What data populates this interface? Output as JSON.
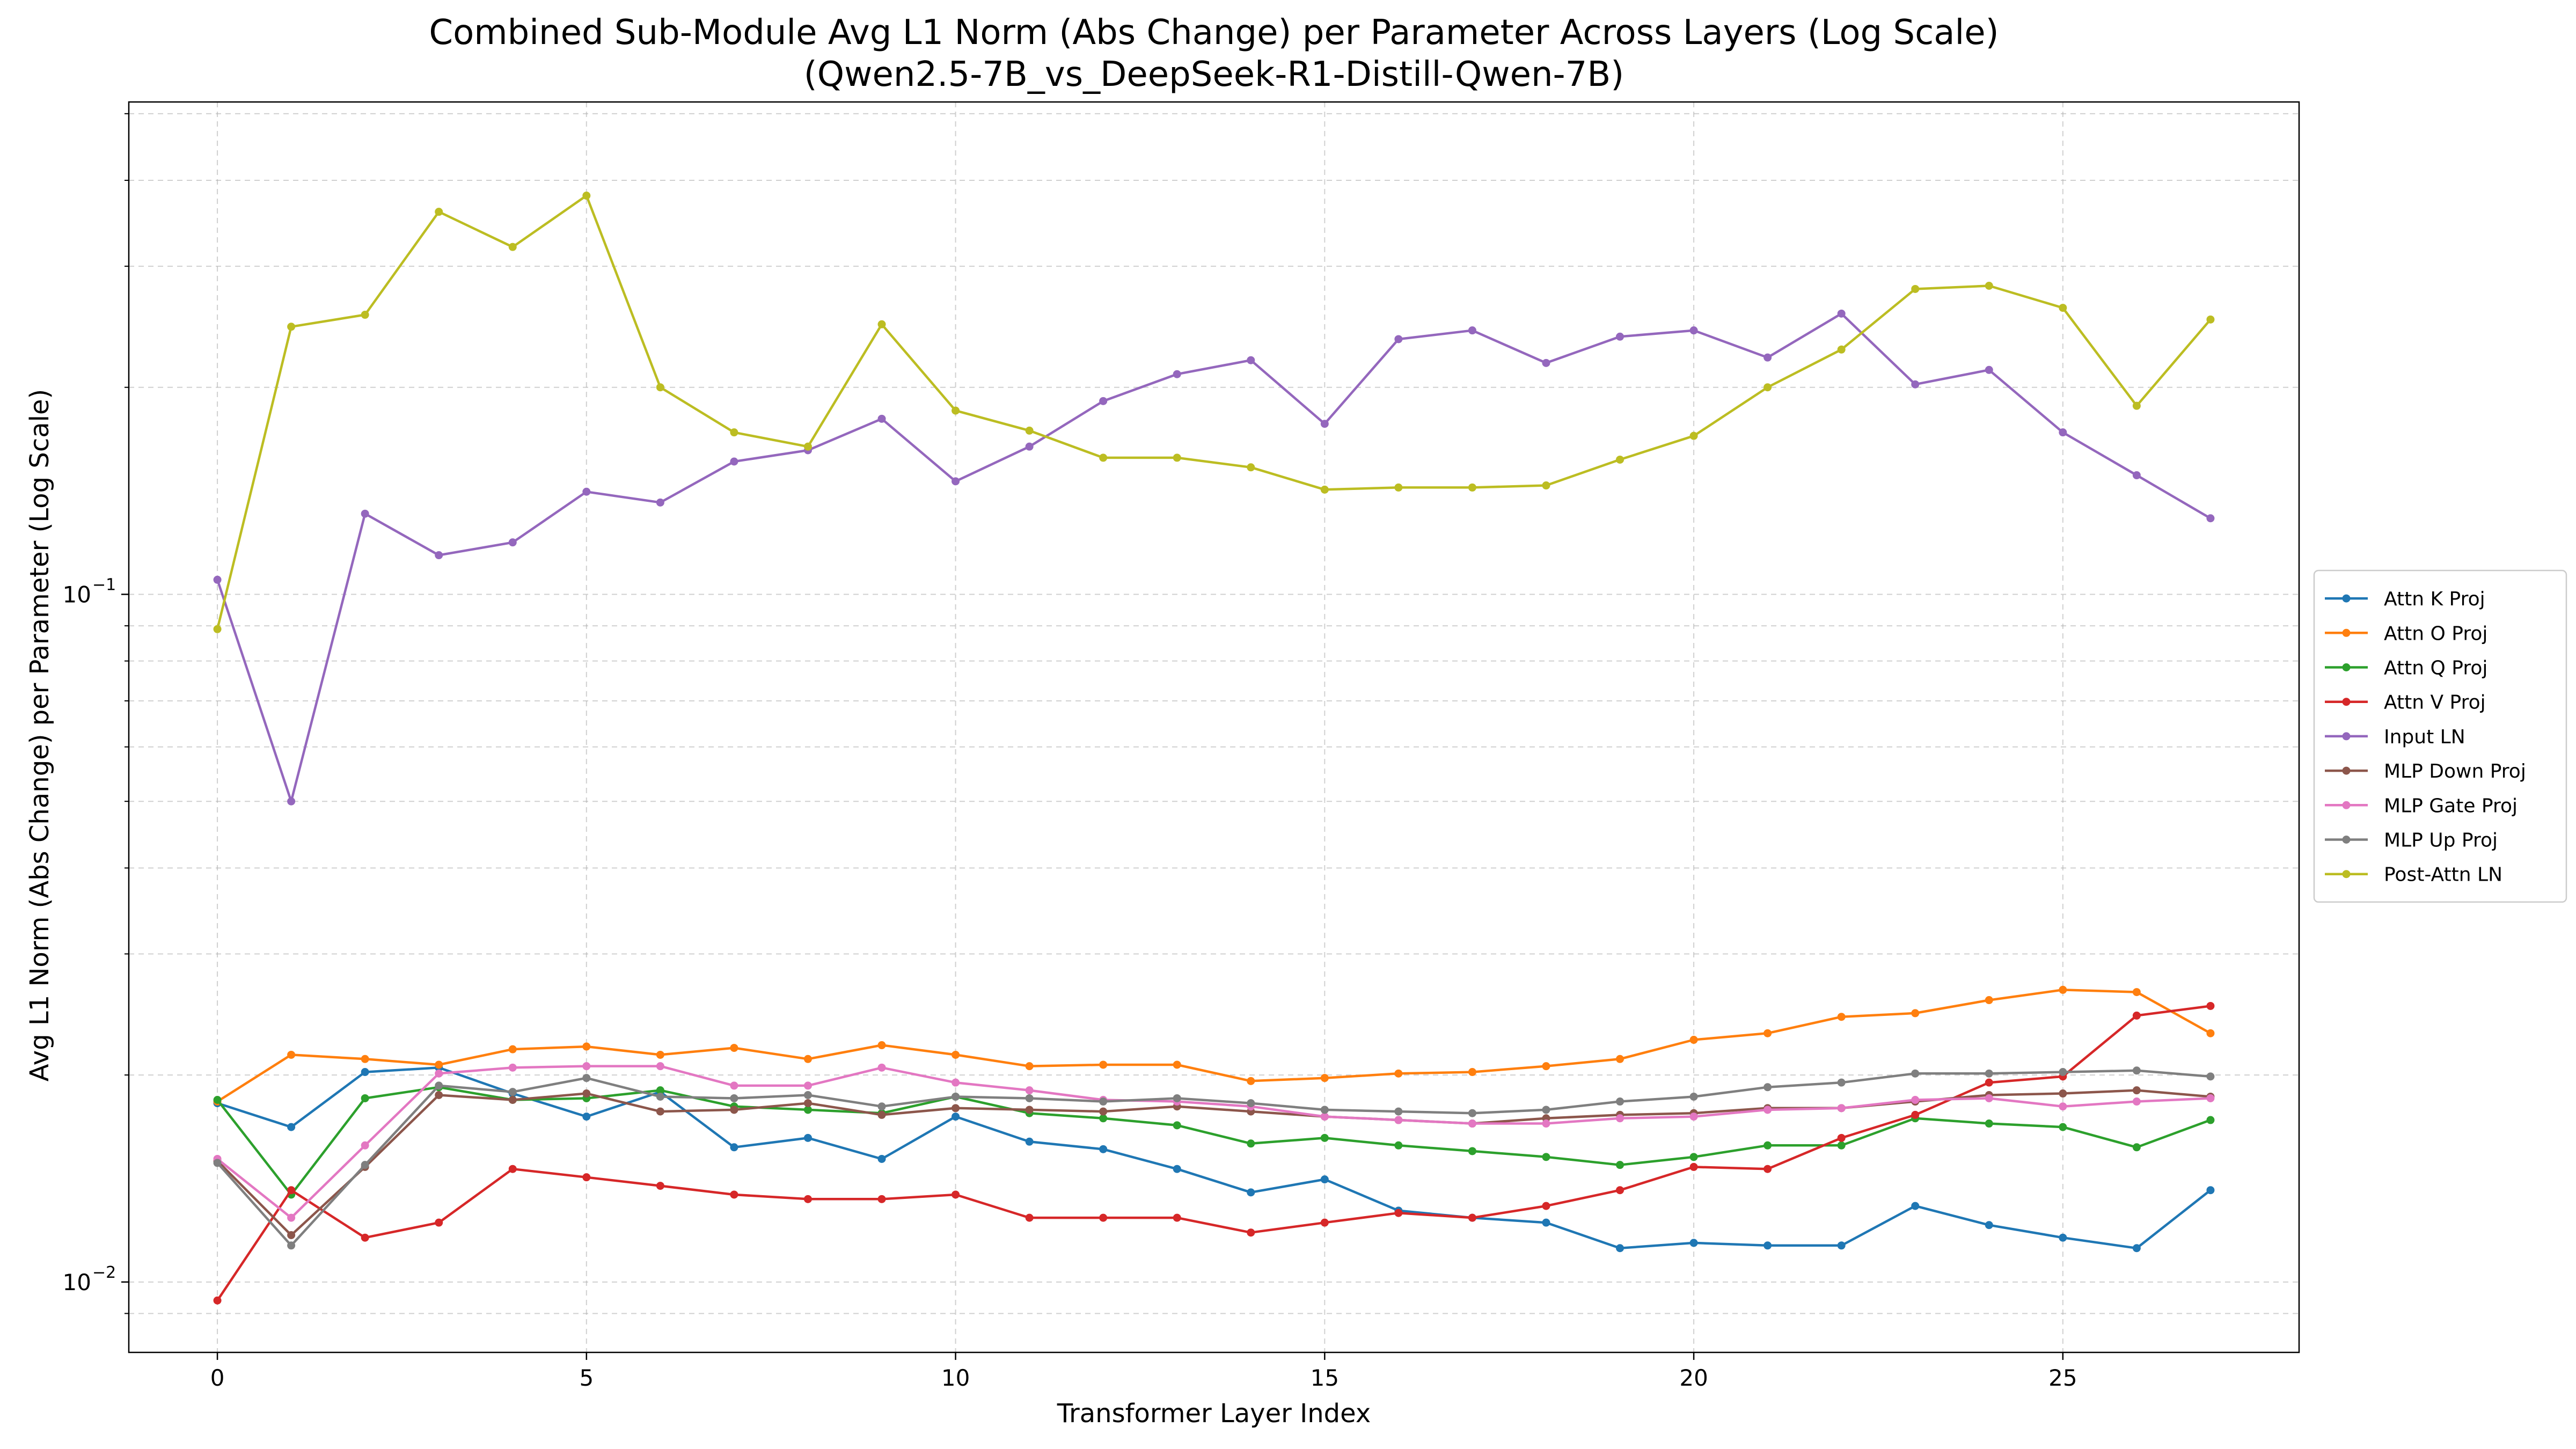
{
  "chart_data": {
    "type": "line",
    "title": "Combined Sub-Module Avg L1 Norm (Abs Change) per Parameter Across Layers (Log Scale)",
    "subtitle": "(Qwen2.5-7B_vs_DeepSeek-R1-Distill-Qwen-7B)",
    "xlabel": "Transformer Layer Index",
    "ylabel": "Avg L1 Norm (Abs Change) per Parameter (Log Scale)",
    "yscale": "log",
    "xlim": [
      -1.2,
      28.2
    ],
    "ylim": [
      0.0079,
      0.52
    ],
    "x_ticks": [
      0,
      5,
      10,
      15,
      20,
      25
    ],
    "x_tick_labels": [
      "0",
      "5",
      "10",
      "15",
      "20",
      "25"
    ],
    "y_major_ticks": [
      {
        "value": 0.01,
        "base": "10",
        "exp": "−2"
      },
      {
        "value": 0.1,
        "base": "10",
        "exp": "−1"
      }
    ],
    "y_minor_ticks": [
      0.009,
      0.02,
      0.03,
      0.04,
      0.05,
      0.06,
      0.07,
      0.08,
      0.09,
      0.2,
      0.3,
      0.4,
      0.5
    ],
    "grid": true,
    "legend_position": "right",
    "x": [
      0,
      1,
      2,
      3,
      4,
      5,
      6,
      7,
      8,
      9,
      10,
      11,
      12,
      13,
      14,
      15,
      16,
      17,
      18,
      19,
      20,
      21,
      22,
      23,
      24,
      25,
      26,
      27
    ],
    "series": [
      {
        "name": "Attn K Proj",
        "color": "#1f77b4",
        "values": [
          0.0182,
          0.0168,
          0.0202,
          0.0205,
          0.0188,
          0.0174,
          0.0189,
          0.0157,
          0.0162,
          0.0151,
          0.0174,
          0.016,
          0.0156,
          0.0146,
          0.0135,
          0.0141,
          0.0127,
          0.0124,
          0.0122,
          0.0112,
          0.0114,
          0.0113,
          0.0113,
          0.0129,
          0.0121,
          0.0116,
          0.0112,
          0.0136
        ]
      },
      {
        "name": "Attn O Proj",
        "color": "#ff7f0e",
        "values": [
          0.0183,
          0.0214,
          0.0211,
          0.0207,
          0.0218,
          0.022,
          0.0214,
          0.0219,
          0.0211,
          0.0221,
          0.0214,
          0.0206,
          0.0207,
          0.0207,
          0.0196,
          0.0198,
          0.0201,
          0.0202,
          0.0206,
          0.0211,
          0.0225,
          0.023,
          0.0243,
          0.0246,
          0.0257,
          0.0266,
          0.0264,
          0.023
        ]
      },
      {
        "name": "Attn Q Proj",
        "color": "#2ca02c",
        "values": [
          0.0184,
          0.0134,
          0.0185,
          0.0192,
          0.0184,
          0.0185,
          0.019,
          0.018,
          0.0178,
          0.0176,
          0.0186,
          0.0176,
          0.0173,
          0.0169,
          0.0159,
          0.0162,
          0.0158,
          0.0155,
          0.0152,
          0.0148,
          0.0152,
          0.0158,
          0.0158,
          0.0173,
          0.017,
          0.0168,
          0.0157,
          0.0172
        ]
      },
      {
        "name": "Attn V Proj",
        "color": "#d62728",
        "values": [
          0.0094,
          0.0136,
          0.0116,
          0.0122,
          0.0146,
          0.0142,
          0.0138,
          0.0134,
          0.0132,
          0.0132,
          0.0134,
          0.0124,
          0.0124,
          0.0124,
          0.0118,
          0.0122,
          0.0126,
          0.0124,
          0.0129,
          0.0136,
          0.0147,
          0.0146,
          0.0162,
          0.0175,
          0.0195,
          0.0199,
          0.0244,
          0.0252
        ]
      },
      {
        "name": "Input LN",
        "color": "#9467bd",
        "values": [
          0.105,
          0.05,
          0.131,
          0.114,
          0.119,
          0.141,
          0.136,
          0.156,
          0.162,
          0.18,
          0.146,
          0.164,
          0.191,
          0.209,
          0.219,
          0.177,
          0.235,
          0.242,
          0.217,
          0.237,
          0.242,
          0.221,
          0.256,
          0.202,
          0.212,
          0.172,
          0.149,
          0.129
        ]
      },
      {
        "name": "MLP Down Proj",
        "color": "#8c564b",
        "values": [
          0.015,
          0.0117,
          0.0147,
          0.0187,
          0.0184,
          0.0188,
          0.0177,
          0.0178,
          0.0182,
          0.0175,
          0.0179,
          0.0178,
          0.0177,
          0.018,
          0.0177,
          0.0174,
          0.0172,
          0.017,
          0.0173,
          0.0175,
          0.0176,
          0.0179,
          0.0179,
          0.0183,
          0.0187,
          0.0188,
          0.019,
          0.0186
        ]
      },
      {
        "name": "MLP Gate Proj",
        "color": "#e377c2",
        "values": [
          0.0151,
          0.0124,
          0.0158,
          0.0201,
          0.0205,
          0.0206,
          0.0206,
          0.0193,
          0.0193,
          0.0205,
          0.0195,
          0.019,
          0.0184,
          0.0183,
          0.018,
          0.0174,
          0.0172,
          0.017,
          0.017,
          0.0173,
          0.0174,
          0.0178,
          0.0179,
          0.0184,
          0.0185,
          0.018,
          0.0183,
          0.0185
        ]
      },
      {
        "name": "MLP Up Proj",
        "color": "#7f7f7f",
        "values": [
          0.0149,
          0.0113,
          0.0148,
          0.0193,
          0.0189,
          0.0198,
          0.0186,
          0.0185,
          0.0187,
          0.018,
          0.0186,
          0.0185,
          0.0183,
          0.0185,
          0.0182,
          0.0178,
          0.0177,
          0.0176,
          0.0178,
          0.0183,
          0.0186,
          0.0192,
          0.0195,
          0.0201,
          0.0201,
          0.0202,
          0.0203,
          0.0199
        ]
      },
      {
        "name": "Post-Attn LN",
        "color": "#bcbd22",
        "values": [
          0.089,
          0.245,
          0.255,
          0.36,
          0.32,
          0.38,
          0.2,
          0.172,
          0.164,
          0.247,
          0.185,
          0.173,
          0.158,
          0.158,
          0.153,
          0.142,
          0.143,
          0.143,
          0.144,
          0.157,
          0.17,
          0.2,
          0.227,
          0.278,
          0.281,
          0.261,
          0.188,
          0.251
        ]
      }
    ]
  }
}
